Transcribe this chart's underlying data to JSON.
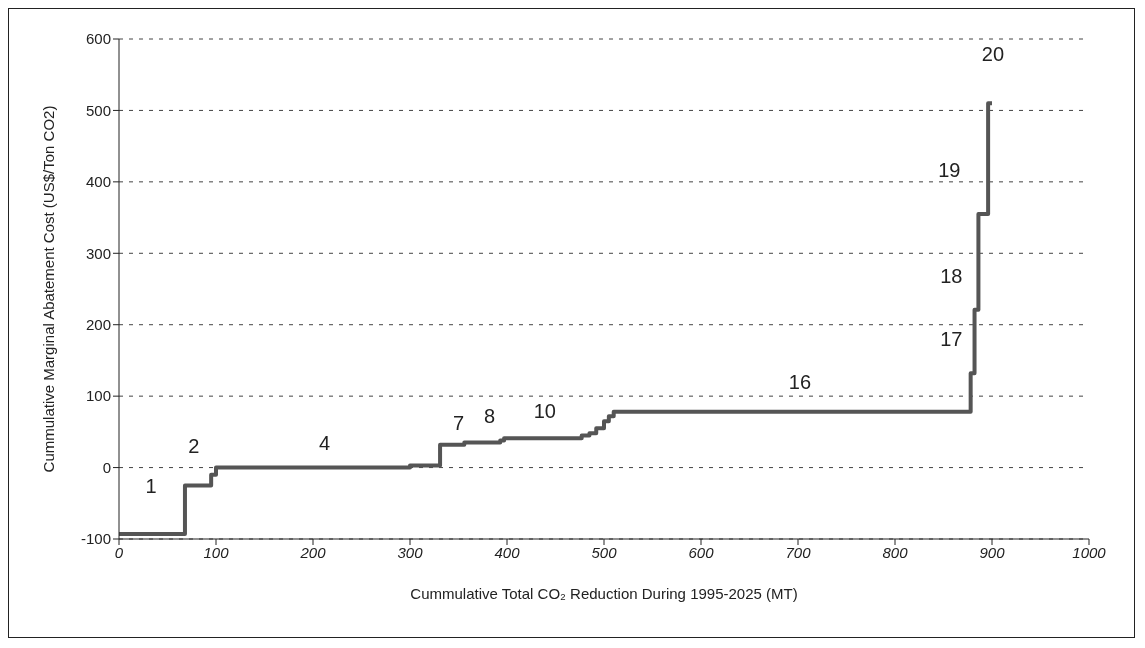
{
  "chart_data": {
    "type": "step",
    "xlabel": "Cummulative Total CO₂ Reduction During 1995-2025 (MT)",
    "ylabel": "Cummulative Marginal Abatement Cost (US$/Ton CO2)",
    "x": [
      0,
      68,
      95,
      100,
      300,
      331,
      356,
      393,
      397,
      477,
      485,
      492,
      500,
      505,
      510,
      878,
      882,
      886,
      896,
      900
    ],
    "series": [
      {
        "color": "#555555",
        "values": [
          -93,
          -25,
          -10,
          0,
          3,
          32,
          35,
          38,
          41,
          45,
          48,
          55,
          65,
          72,
          78,
          132,
          221,
          355,
          510,
          510
        ]
      }
    ],
    "xlim": [
      0,
      1000
    ],
    "xticks": [
      0,
      100,
      200,
      300,
      400,
      500,
      600,
      700,
      800,
      900,
      1000
    ],
    "ylim": [
      -100,
      600
    ],
    "yticks": [
      -100,
      0,
      100,
      200,
      300,
      400,
      500,
      600
    ],
    "grid": "y",
    "legend": false,
    "line_style": "solid",
    "marker": "none",
    "annotations": [
      "1",
      "2",
      "4",
      "7",
      "8",
      "10",
      "16",
      "17",
      "18",
      "19",
      "20"
    ]
  }
}
